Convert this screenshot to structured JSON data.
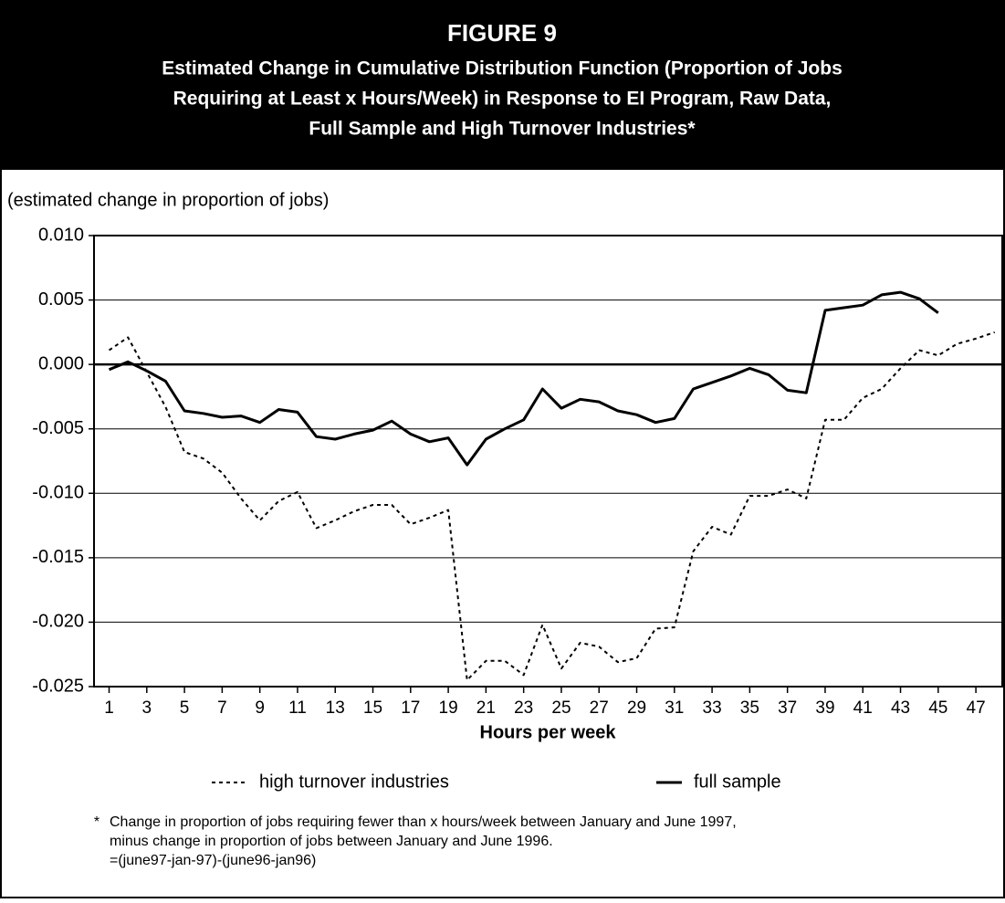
{
  "chart_data": {
    "type": "line",
    "title": "FIGURE 9",
    "subtitle": [
      "Estimated Change in Cumulative Distribution Function (Proportion of Jobs",
      "Requiring at Least x Hours/Week) in Response to EI Program, Raw Data,",
      "Full Sample and High Turnover Industries*"
    ],
    "ylabel": "(estimated change in proportion of jobs)",
    "xlabel": "Hours per week",
    "x": [
      1,
      2,
      3,
      4,
      5,
      6,
      7,
      8,
      9,
      10,
      11,
      12,
      13,
      14,
      15,
      16,
      17,
      18,
      19,
      20,
      21,
      22,
      23,
      24,
      25,
      26,
      27,
      28,
      29,
      30,
      31,
      32,
      33,
      34,
      35,
      36,
      37,
      38,
      39,
      40,
      41,
      42,
      43,
      44,
      45,
      46,
      47,
      48
    ],
    "series": [
      {
        "name": "high turnover industries",
        "color": "#000000",
        "line_style": "dashed",
        "values": [
          0.0011,
          0.0021,
          -0.0006,
          -0.0033,
          -0.0068,
          -0.0073,
          -0.0084,
          -0.0104,
          -0.0121,
          -0.0106,
          -0.0099,
          -0.0127,
          -0.0121,
          -0.0114,
          -0.0109,
          -0.0109,
          -0.0124,
          -0.0119,
          -0.0113,
          -0.0245,
          -0.023,
          -0.023,
          -0.0241,
          -0.0202,
          -0.0236,
          -0.0216,
          -0.0219,
          -0.0231,
          -0.0228,
          -0.0205,
          -0.0204,
          -0.0145,
          -0.0126,
          -0.0132,
          -0.0102,
          -0.0102,
          -0.0097,
          -0.0104,
          -0.0043,
          -0.0043,
          -0.0026,
          -0.0019,
          -0.0003,
          0.0011,
          0.0007,
          0.0016,
          0.002,
          0.0025
        ]
      },
      {
        "name": "full sample",
        "color": "#000000",
        "line_style": "solid",
        "values": [
          -0.0004,
          0.0002,
          -0.0005,
          -0.0013,
          -0.0036,
          -0.0038,
          -0.0041,
          -0.004,
          -0.0045,
          -0.0035,
          -0.0037,
          -0.0056,
          -0.0058,
          -0.0054,
          -0.0051,
          -0.0044,
          -0.0054,
          -0.006,
          -0.0057,
          -0.0078,
          -0.0058,
          -0.005,
          -0.0043,
          -0.0019,
          -0.0034,
          -0.0027,
          -0.0029,
          -0.0036,
          -0.0039,
          -0.0045,
          -0.0042,
          -0.0019,
          -0.0014,
          -0.0009,
          -0.0003,
          -0.0008,
          -0.002,
          -0.0022,
          0.0042,
          0.0044,
          0.0046,
          0.0054,
          0.0056,
          0.0051,
          0.004,
          null,
          null,
          null
        ]
      }
    ],
    "xlim": [
      0.2,
      48.4
    ],
    "xticks": [
      1,
      3,
      5,
      7,
      9,
      11,
      13,
      15,
      17,
      19,
      21,
      23,
      25,
      27,
      29,
      31,
      33,
      35,
      37,
      39,
      41,
      43,
      45,
      47
    ],
    "ylim": [
      -0.025,
      0.01
    ],
    "yticks": [
      {
        "value": -0.025,
        "label": "-0.025"
      },
      {
        "value": -0.02,
        "label": "-0.020"
      },
      {
        "value": -0.015,
        "label": "-0.015"
      },
      {
        "value": -0.01,
        "label": "-0.010"
      },
      {
        "value": -0.005,
        "label": "-0.005"
      },
      {
        "value": 0,
        "label": "0.000"
      },
      {
        "value": 0.005,
        "label": "0.005"
      },
      {
        "value": 0.01,
        "label": "0.010"
      }
    ],
    "grid": true,
    "footnote": {
      "marker": "*",
      "lines": [
        "Change in proportion of jobs requiring fewer than x hours/week between January and June 1997,",
        "minus change in proportion of jobs between January and June 1996.",
        "=(june97-jan-97)-(june96-jan96)"
      ]
    }
  }
}
